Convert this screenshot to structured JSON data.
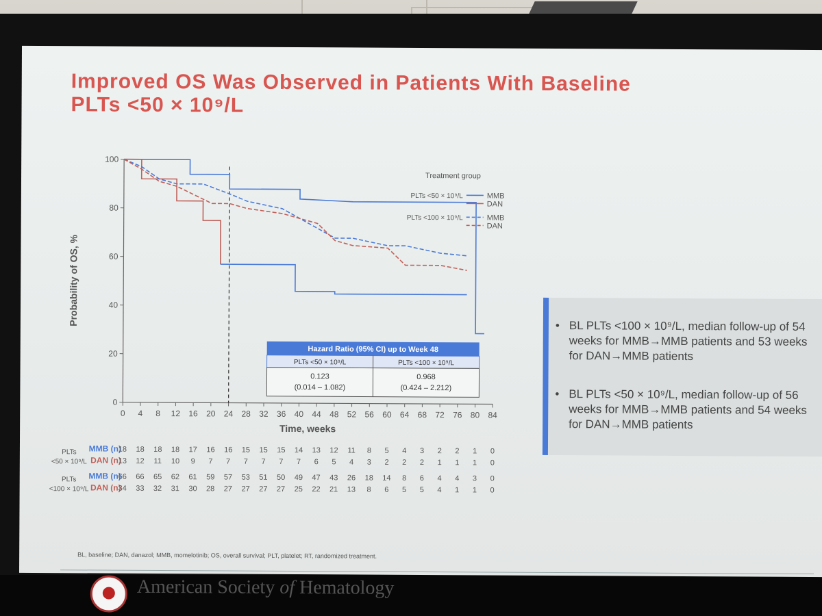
{
  "slide": {
    "title_line1": "Improved OS Was Observed in Patients With Baseline",
    "title_line2": "PLTs <50 × 10⁹/L",
    "bullets": [
      "BL PLTs <100 × 10⁹/L, median follow-up of 54 weeks for MMB→MMB patients and 53 weeks for DAN→MMB patients",
      "BL PLTs <50 × 10⁹/L, median follow-up of 56 weeks for MMB→MMB patients and 54 weeks for DAN→MMB patients"
    ],
    "footnote": "BL, baseline; DAN, danazol; MMB, momelotinib; OS, overall survival; PLT, platelet; RT, randomized treatment.",
    "org_prefix": "American Society ",
    "org_of": "of",
    "org_suffix": " Hematology",
    "colors": {
      "title": "#d85550",
      "mmb": "#4a7ad8",
      "dan": "#c0605a",
      "accent_bar": "#4a7ad8"
    }
  },
  "chart_data": {
    "type": "line",
    "xlabel": "Time, weeks",
    "ylabel": "Probability of OS, %",
    "xlim": [
      0,
      84
    ],
    "ylim": [
      0,
      100
    ],
    "xticks": [
      0,
      4,
      8,
      12,
      16,
      20,
      24,
      28,
      32,
      36,
      40,
      44,
      48,
      52,
      56,
      60,
      64,
      68,
      72,
      76,
      80,
      84
    ],
    "yticks": [
      0,
      20,
      40,
      60,
      80,
      100
    ],
    "reference_line_x": 24,
    "legend": {
      "title": "Treatment group",
      "groups": [
        {
          "label": "PLTs <50 × 10⁹/L",
          "entries": [
            "MMB",
            "DAN"
          ]
        },
        {
          "label": "PLTs <100 × 10⁹/L",
          "entries": [
            "MMB",
            "DAN"
          ]
        }
      ]
    },
    "series": [
      {
        "group": "PLTs <50 × 10⁹/L",
        "arm": "MMB",
        "style": "solid",
        "color": "#4a7ad8",
        "x": [
          0,
          15,
          15,
          24,
          24,
          40,
          40,
          52,
          80,
          80,
          82
        ],
        "y": [
          100,
          100,
          94,
          94,
          88,
          88,
          84,
          83,
          83,
          29,
          29
        ]
      },
      {
        "group": "PLTs <50 × 10⁹/L",
        "arm": "DAN",
        "style": "solid",
        "color": "#c0605a",
        "x": [
          0,
          4,
          4,
          12,
          12,
          18,
          18,
          22,
          22
        ],
        "y": [
          100,
          100,
          92,
          92,
          83,
          83,
          75,
          75,
          57
        ]
      },
      {
        "group": "PLTs <50 × 10⁹/L",
        "arm": "DAN-cont",
        "style": "solid",
        "color": "#4a7ad8",
        "x": [
          22,
          39,
          39,
          48,
          48,
          78
        ],
        "y": [
          57,
          57,
          46,
          46,
          45,
          45
        ]
      },
      {
        "group": "PLTs <100 × 10⁹/L",
        "arm": "MMB",
        "style": "dashed",
        "color": "#4a7ad8",
        "x": [
          0,
          4,
          8,
          12,
          18,
          24,
          28,
          36,
          44,
          48,
          52,
          60,
          64,
          72,
          78
        ],
        "y": [
          100,
          97,
          92,
          90,
          90,
          86,
          83,
          80,
          72,
          68,
          68,
          65,
          65,
          62,
          61
        ]
      },
      {
        "group": "PLTs <100 × 10⁹/L",
        "arm": "DAN",
        "style": "dashed",
        "color": "#c0605a",
        "x": [
          0,
          4,
          8,
          12,
          20,
          24,
          28,
          36,
          44,
          48,
          52,
          60,
          64,
          72,
          78
        ],
        "y": [
          100,
          96,
          91,
          89,
          82,
          82,
          80,
          78,
          74,
          67,
          65,
          64,
          57,
          57,
          55
        ]
      }
    ],
    "hazard_table": {
      "title": "Hazard Ratio (95% CI) up to Week 48",
      "col1_header": "PLTs <50 × 10⁹/L",
      "col2_header": "PLTs <100 × 10⁹/L",
      "col1_value": "0.123",
      "col1_ci": "(0.014 – 1.082)",
      "col2_value": "0.968",
      "col2_ci": "(0.424 – 2.212)"
    },
    "risk_table": {
      "groups": [
        {
          "label_line1": "PLTs",
          "label_line2": "<50 × 10⁹/L",
          "rows": [
            {
              "arm": "MMB (n)",
              "values": [
                18,
                18,
                18,
                18,
                17,
                16,
                16,
                15,
                15,
                15,
                14,
                13,
                12,
                11,
                8,
                5,
                4,
                3,
                2,
                2,
                1,
                0
              ]
            },
            {
              "arm": "DAN (n)",
              "values": [
                13,
                12,
                11,
                10,
                9,
                7,
                7,
                7,
                7,
                7,
                7,
                6,
                5,
                4,
                3,
                2,
                2,
                2,
                1,
                1,
                1,
                0
              ]
            }
          ]
        },
        {
          "label_line1": "PLTs",
          "label_line2": "<100 × 10⁹/L",
          "rows": [
            {
              "arm": "MMB (n)",
              "values": [
                66,
                66,
                65,
                62,
                61,
                59,
                57,
                53,
                51,
                50,
                49,
                47,
                43,
                26,
                18,
                14,
                8,
                6,
                4,
                4,
                3,
                0
              ]
            },
            {
              "arm": "DAN (n)",
              "values": [
                34,
                33,
                32,
                31,
                30,
                28,
                27,
                27,
                27,
                27,
                25,
                22,
                21,
                13,
                8,
                6,
                5,
                5,
                4,
                1,
                1,
                0
              ]
            }
          ]
        }
      ]
    }
  }
}
